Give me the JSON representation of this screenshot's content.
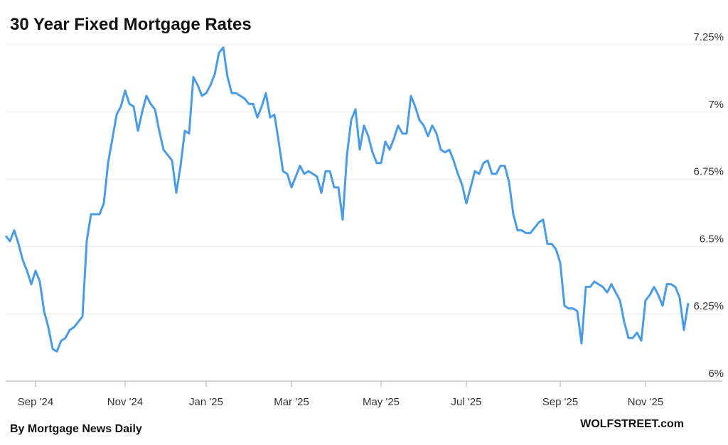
{
  "chart_data": {
    "type": "line",
    "title": "30 Year Fixed Mortgage Rates",
    "source": "By Mortgage News Daily",
    "credit": "WOLFSTREET.com",
    "categories": [
      null,
      null,
      null,
      null,
      null,
      null,
      null,
      "Sep '24",
      null,
      null,
      null,
      null,
      null,
      null,
      null,
      null,
      null,
      null,
      null,
      null,
      null,
      null,
      null,
      null,
      null,
      null,
      null,
      null,
      "Nov '24",
      null,
      null,
      null,
      null,
      null,
      null,
      null,
      null,
      null,
      null,
      null,
      null,
      null,
      null,
      null,
      null,
      null,
      null,
      "Jan '25",
      null,
      null,
      null,
      null,
      null,
      null,
      null,
      null,
      null,
      null,
      null,
      null,
      null,
      null,
      null,
      null,
      null,
      null,
      null,
      "Mar '25",
      null,
      null,
      null,
      null,
      null,
      null,
      null,
      null,
      null,
      null,
      null,
      null,
      null,
      null,
      null,
      null,
      null,
      null,
      null,
      null,
      "May '25",
      null,
      null,
      null,
      null,
      null,
      null,
      null,
      null,
      null,
      null,
      null,
      null,
      null,
      null,
      null,
      null,
      null,
      null,
      null,
      "Jul '25",
      null,
      null,
      null,
      null,
      null,
      null,
      null,
      null,
      null,
      null,
      null,
      null,
      null,
      null,
      null,
      null,
      null,
      null,
      null,
      null,
      null,
      "Sep '25",
      null,
      null,
      null,
      null,
      null,
      null,
      null,
      null,
      null,
      null,
      null,
      null,
      null,
      null,
      null,
      null,
      null,
      null,
      null,
      "Nov '25",
      null,
      null,
      null,
      null,
      null,
      null,
      null,
      null,
      null,
      null
    ],
    "series": [
      {
        "name": "30 Year Fixed",
        "color": "#4a9be6",
        "values": [
          6.54,
          6.52,
          6.56,
          6.51,
          6.45,
          6.41,
          6.36,
          6.41,
          6.37,
          6.26,
          6.2,
          6.12,
          6.11,
          6.15,
          6.16,
          6.19,
          6.2,
          6.22,
          6.24,
          6.52,
          6.62,
          6.62,
          6.62,
          6.66,
          6.81,
          6.9,
          6.99,
          7.02,
          7.08,
          7.03,
          7.02,
          6.93,
          7.0,
          7.06,
          7.03,
          7.01,
          6.93,
          6.86,
          6.84,
          6.82,
          6.7,
          6.8,
          6.93,
          6.92,
          7.13,
          7.1,
          7.06,
          7.07,
          7.1,
          7.14,
          7.22,
          7.24,
          7.13,
          7.07,
          7.07,
          7.06,
          7.05,
          7.03,
          7.03,
          6.98,
          7.02,
          7.07,
          6.98,
          6.99,
          6.89,
          6.78,
          6.77,
          6.72,
          6.76,
          6.8,
          6.77,
          6.78,
          6.77,
          6.76,
          6.7,
          6.78,
          6.78,
          6.72,
          6.72,
          6.6,
          6.84,
          6.97,
          7.01,
          6.86,
          6.95,
          6.91,
          6.85,
          6.81,
          6.81,
          6.89,
          6.86,
          6.9,
          6.95,
          6.92,
          6.92,
          7.06,
          7.02,
          6.97,
          6.95,
          6.91,
          6.95,
          6.92,
          6.86,
          6.85,
          6.86,
          6.82,
          6.77,
          6.73,
          6.66,
          6.72,
          6.78,
          6.77,
          6.81,
          6.82,
          6.77,
          6.77,
          6.8,
          6.8,
          6.74,
          6.62,
          6.56,
          6.56,
          6.55,
          6.55,
          6.57,
          6.59,
          6.6,
          6.51,
          6.51,
          6.49,
          6.44,
          6.28,
          6.27,
          6.27,
          6.26,
          6.14,
          6.35,
          6.35,
          6.37,
          6.36,
          6.35,
          6.33,
          6.36,
          6.33,
          6.3,
          6.22,
          6.16,
          6.16,
          6.18,
          6.15,
          6.3,
          6.32,
          6.35,
          6.32,
          6.28,
          6.36,
          6.36,
          6.35,
          6.31,
          6.19,
          6.29
        ]
      }
    ],
    "ylim": [
      6,
      7.25
    ],
    "yticks": [
      {
        "value": 6,
        "label": "6%"
      },
      {
        "value": 6.25,
        "label": "6.25%"
      },
      {
        "value": 6.5,
        "label": "6.5%"
      },
      {
        "value": 6.75,
        "label": "6.75%"
      },
      {
        "value": 7,
        "label": "7%"
      },
      {
        "value": 7.25,
        "label": "7.25%"
      }
    ],
    "grid": true
  }
}
